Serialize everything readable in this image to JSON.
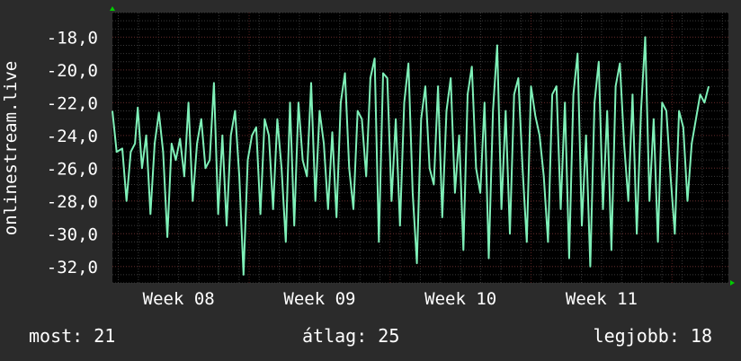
{
  "chart_data": {
    "type": "line",
    "ylabel": "onlinestream.live",
    "y_tick_labels": [
      "-18,0",
      "-20,0",
      "-22,0",
      "-24,0",
      "-26,0",
      "-28,0",
      "-30,0",
      "-32,0"
    ],
    "y_ticks": [
      -18,
      -20,
      -22,
      -24,
      -26,
      -28,
      -30,
      -32
    ],
    "ylim": [
      -33,
      -16.5
    ],
    "x_tick_labels": [
      "Week 08",
      "Week 09",
      "Week 10",
      "Week 11"
    ],
    "x_ticks": [
      8,
      9,
      10,
      11
    ],
    "xlim": [
      7.53,
      11.9
    ],
    "grid": true,
    "colors": {
      "line": "#7ff0b8",
      "background": "#000000",
      "grid_major": "#5a2222",
      "grid_minor": "#3a3a3a",
      "axis_arrow": "#00cc00"
    },
    "series": [
      {
        "values": [
          [
            7.53,
            -22.5
          ],
          [
            7.56,
            -25.0
          ],
          [
            7.6,
            -24.8
          ],
          [
            7.63,
            -28.0
          ],
          [
            7.66,
            -25.0
          ],
          [
            7.69,
            -24.5
          ],
          [
            7.71,
            -22.3
          ],
          [
            7.74,
            -26.0
          ],
          [
            7.77,
            -24.0
          ],
          [
            7.8,
            -28.8
          ],
          [
            7.83,
            -24.5
          ],
          [
            7.86,
            -22.6
          ],
          [
            7.89,
            -25.0
          ],
          [
            7.92,
            -30.2
          ],
          [
            7.95,
            -24.5
          ],
          [
            7.98,
            -25.5
          ],
          [
            8.01,
            -24.2
          ],
          [
            8.04,
            -26.5
          ],
          [
            8.07,
            -22.0
          ],
          [
            8.1,
            -28.0
          ],
          [
            8.13,
            -24.5
          ],
          [
            8.16,
            -23.0
          ],
          [
            8.19,
            -26.0
          ],
          [
            8.22,
            -25.5
          ],
          [
            8.25,
            -20.8
          ],
          [
            8.28,
            -28.8
          ],
          [
            8.31,
            -24.0
          ],
          [
            8.34,
            -29.5
          ],
          [
            8.37,
            -24.0
          ],
          [
            8.4,
            -22.5
          ],
          [
            8.43,
            -26.5
          ],
          [
            8.46,
            -32.5
          ],
          [
            8.49,
            -25.5
          ],
          [
            8.52,
            -24.0
          ],
          [
            8.55,
            -23.5
          ],
          [
            8.58,
            -28.8
          ],
          [
            8.61,
            -23.0
          ],
          [
            8.64,
            -24.0
          ],
          [
            8.67,
            -28.5
          ],
          [
            8.7,
            -23.0
          ],
          [
            8.73,
            -26.0
          ],
          [
            8.76,
            -30.5
          ],
          [
            8.79,
            -22.0
          ],
          [
            8.82,
            -29.5
          ],
          [
            8.85,
            -22.0
          ],
          [
            8.88,
            -25.5
          ],
          [
            8.91,
            -26.5
          ],
          [
            8.94,
            -20.8
          ],
          [
            8.97,
            -28.0
          ],
          [
            9.0,
            -22.5
          ],
          [
            9.03,
            -24.5
          ],
          [
            9.06,
            -28.5
          ],
          [
            9.09,
            -23.8
          ],
          [
            9.12,
            -29.0
          ],
          [
            9.15,
            -22.0
          ],
          [
            9.18,
            -20.2
          ],
          [
            9.21,
            -26.0
          ],
          [
            9.24,
            -28.5
          ],
          [
            9.27,
            -22.5
          ],
          [
            9.3,
            -23.0
          ],
          [
            9.33,
            -26.5
          ],
          [
            9.36,
            -20.5
          ],
          [
            9.39,
            -19.3
          ],
          [
            9.42,
            -30.5
          ],
          [
            9.45,
            -20.2
          ],
          [
            9.48,
            -20.5
          ],
          [
            9.51,
            -28.0
          ],
          [
            9.54,
            -23.0
          ],
          [
            9.57,
            -29.5
          ],
          [
            9.6,
            -22.0
          ],
          [
            9.63,
            -19.6
          ],
          [
            9.66,
            -27.5
          ],
          [
            9.69,
            -31.8
          ],
          [
            9.72,
            -23.0
          ],
          [
            9.75,
            -21.0
          ],
          [
            9.78,
            -26.0
          ],
          [
            9.81,
            -27.0
          ],
          [
            9.84,
            -21.0
          ],
          [
            9.87,
            -29.0
          ],
          [
            9.9,
            -22.5
          ],
          [
            9.93,
            -20.5
          ],
          [
            9.96,
            -27.5
          ],
          [
            9.99,
            -24.0
          ],
          [
            10.02,
            -31.0
          ],
          [
            10.05,
            -21.5
          ],
          [
            10.08,
            -19.8
          ],
          [
            10.11,
            -26.0
          ],
          [
            10.14,
            -27.5
          ],
          [
            10.17,
            -22.0
          ],
          [
            10.2,
            -31.5
          ],
          [
            10.23,
            -22.5
          ],
          [
            10.26,
            -18.5
          ],
          [
            10.29,
            -28.5
          ],
          [
            10.32,
            -22.5
          ],
          [
            10.35,
            -30.0
          ],
          [
            10.38,
            -21.5
          ],
          [
            10.41,
            -20.5
          ],
          [
            10.44,
            -26.0
          ],
          [
            10.47,
            -30.5
          ],
          [
            10.5,
            -21.0
          ],
          [
            10.53,
            -22.8
          ],
          [
            10.56,
            -24.0
          ],
          [
            10.59,
            -26.5
          ],
          [
            10.62,
            -30.5
          ],
          [
            10.65,
            -21.5
          ],
          [
            10.68,
            -21.0
          ],
          [
            10.71,
            -28.5
          ],
          [
            10.74,
            -22.0
          ],
          [
            10.77,
            -31.5
          ],
          [
            10.8,
            -21.5
          ],
          [
            10.83,
            -19.0
          ],
          [
            10.86,
            -29.5
          ],
          [
            10.89,
            -24.0
          ],
          [
            10.92,
            -32.0
          ],
          [
            10.95,
            -22.0
          ],
          [
            10.98,
            -19.5
          ],
          [
            11.01,
            -28.5
          ],
          [
            11.04,
            -22.5
          ],
          [
            11.07,
            -31.0
          ],
          [
            11.1,
            -21.0
          ],
          [
            11.13,
            -19.6
          ],
          [
            11.16,
            -24.5
          ],
          [
            11.19,
            -28.0
          ],
          [
            11.22,
            -21.5
          ],
          [
            11.25,
            -30.0
          ],
          [
            11.28,
            -22.5
          ],
          [
            11.31,
            -18.0
          ],
          [
            11.34,
            -28.0
          ],
          [
            11.37,
            -23.0
          ],
          [
            11.4,
            -30.5
          ],
          [
            11.43,
            -22.0
          ],
          [
            11.46,
            -22.5
          ],
          [
            11.49,
            -26.5
          ],
          [
            11.52,
            -30.0
          ],
          [
            11.55,
            -22.5
          ],
          [
            11.58,
            -23.5
          ],
          [
            11.61,
            -28.0
          ],
          [
            11.64,
            -24.5
          ],
          [
            11.67,
            -23.0
          ],
          [
            11.7,
            -21.5
          ],
          [
            11.73,
            -22.0
          ],
          [
            11.76,
            -21.0
          ]
        ]
      }
    ]
  },
  "stats": {
    "current": "most: 21",
    "average": "átlag: 25",
    "best": "legjobb: 18"
  }
}
